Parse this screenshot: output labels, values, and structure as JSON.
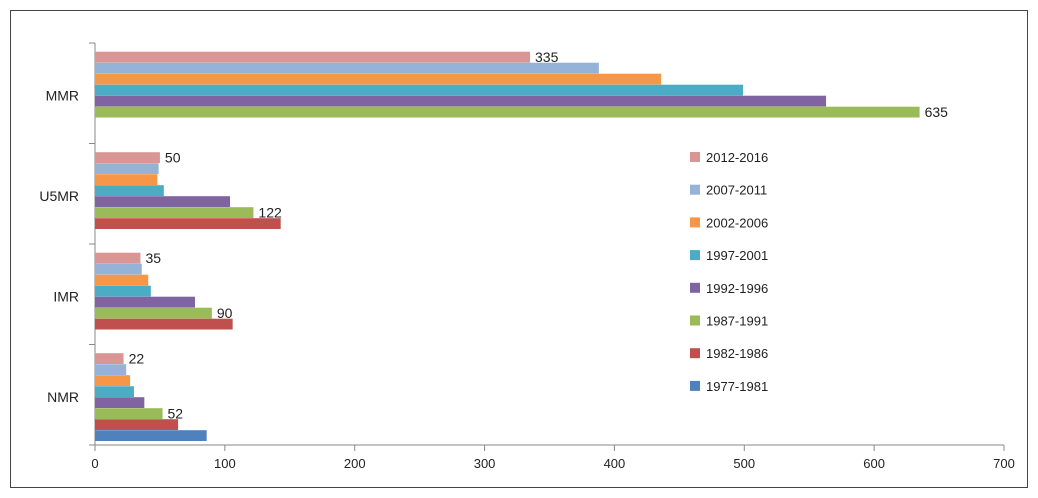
{
  "chart_data": {
    "type": "bar",
    "orientation": "horizontal",
    "categories": [
      "NMR",
      "IMR",
      "U5MR",
      "MMR"
    ],
    "xlim": [
      0,
      700
    ],
    "xticks": [
      0,
      100,
      200,
      300,
      400,
      500,
      600,
      700
    ],
    "grid": false,
    "legend_position": "right",
    "series": [
      {
        "name": "1977-1981",
        "color": "#4f81bd",
        "values": [
          86,
          null,
          null,
          null
        ]
      },
      {
        "name": "1982-1986",
        "color": "#c0504d",
        "values": [
          64,
          106,
          143,
          null
        ]
      },
      {
        "name": "1987-1991",
        "color": "#9bbb59",
        "values": [
          52,
          90,
          122,
          635
        ]
      },
      {
        "name": "1992-1996",
        "color": "#8064a2",
        "values": [
          38,
          77,
          104,
          563
        ]
      },
      {
        "name": "1997-2001",
        "color": "#4bacc6",
        "values": [
          30,
          43,
          53,
          499
        ]
      },
      {
        "name": "2002-2006",
        "color": "#f79646",
        "values": [
          27,
          41,
          48,
          436
        ]
      },
      {
        "name": "2007-2011",
        "color": "#95b3d7",
        "values": [
          24,
          36,
          49,
          388
        ]
      },
      {
        "name": "2012-2016",
        "color": "#d99694",
        "values": [
          22,
          35,
          50,
          335
        ]
      }
    ],
    "data_labels": [
      {
        "category": "NMR",
        "series": "2012-2016",
        "text": "22"
      },
      {
        "category": "NMR",
        "series": "1987-1991",
        "text": "52"
      },
      {
        "category": "IMR",
        "series": "2012-2016",
        "text": "35"
      },
      {
        "category": "IMR",
        "series": "1987-1991",
        "text": "90"
      },
      {
        "category": "U5MR",
        "series": "2012-2016",
        "text": "50"
      },
      {
        "category": "U5MR",
        "series": "1987-1991",
        "text": "122"
      },
      {
        "category": "MMR",
        "series": "2012-2016",
        "text": "335"
      },
      {
        "category": "MMR",
        "series": "1987-1991",
        "text": "635"
      }
    ]
  }
}
